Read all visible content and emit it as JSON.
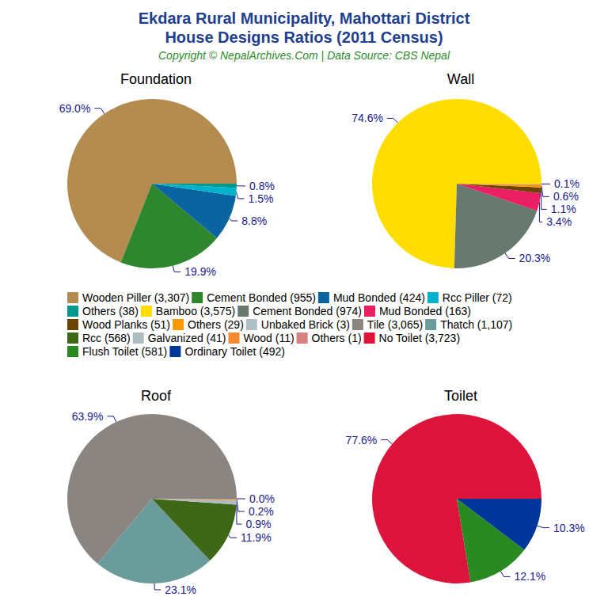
{
  "header": {
    "title": [
      "Ekdara Rural Municipality, Mahottari District",
      "House Designs Ratios (2011 Census)"
    ],
    "subtitle": "Copyright © NepalArchives.Com | Data Source: CBS Nepal"
  },
  "chart_data": [
    {
      "type": "pie",
      "title": "Foundation",
      "categories": [
        "Wooden Piller (3,307)",
        "Cement Bonded (955)",
        "Mud Bonded (424)",
        "Rcc Piller (72)",
        "Others (38)"
      ],
      "values": [
        69.0,
        19.9,
        8.8,
        1.5,
        0.8
      ],
      "value_labels": [
        "69.0%",
        "19.9%",
        "8.8%",
        "1.5%",
        "0.8%"
      ],
      "colors": [
        "#b48c50",
        "#2e862e",
        "#0a64a0",
        "#00b2cc",
        "#00988c"
      ],
      "data_labels": true
    },
    {
      "type": "pie",
      "title": "Wall",
      "categories": [
        "Bamboo (3,575)",
        "Cement Bonded (974)",
        "Mud Bonded (163)",
        "Wood Planks (51)",
        "Others (29)",
        "Unbaked Brick (3)"
      ],
      "values": [
        74.6,
        20.3,
        3.4,
        1.1,
        0.6,
        0.1
      ],
      "value_labels": [
        "74.6%",
        "20.3%",
        "3.4%",
        "1.1%",
        "0.6%",
        "0.1%"
      ],
      "colors": [
        "#ffdd00",
        "#687a70",
        "#e91e63",
        "#6b4400",
        "#ff9800",
        "#b0bec5"
      ],
      "data_labels": true
    },
    {
      "type": "pie",
      "title": "Roof",
      "categories": [
        "Tile (3,065)",
        "Thatch (1,107)",
        "Rcc (568)",
        "Galvanized (41)",
        "Wood (11)",
        "Others (1)"
      ],
      "values": [
        63.9,
        23.1,
        11.9,
        0.9,
        0.2,
        0.0
      ],
      "value_labels": [
        "63.9%",
        "23.1%",
        "11.9%",
        "0.9%",
        "0.2%",
        "0.0%"
      ],
      "colors": [
        "#8a8580",
        "#6b9c9c",
        "#3f6718",
        "#aebdc2",
        "#f28a30",
        "#d88080"
      ],
      "data_labels": true
    },
    {
      "type": "pie",
      "title": "Toilet",
      "categories": [
        "No Toilet (3,723)",
        "Flush Toilet (581)",
        "Ordinary Toilet (492)"
      ],
      "values": [
        77.6,
        12.1,
        10.3
      ],
      "value_labels": [
        "77.6%",
        "12.1%",
        "10.3%"
      ],
      "colors": [
        "#dc143c",
        "#2a8a22",
        "#00369a"
      ],
      "data_labels": true
    }
  ]
}
